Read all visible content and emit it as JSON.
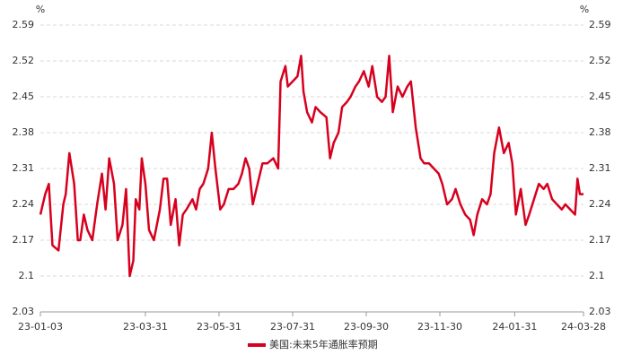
{
  "chart_data": {
    "type": "line",
    "y_unit": "%",
    "y2_unit": "%",
    "x": [
      "23-01-03",
      "23-01-07",
      "23-01-10",
      "23-01-13",
      "23-01-18",
      "23-01-22",
      "23-01-24",
      "23-01-27",
      "23-01-31",
      "23-02-03",
      "23-02-05",
      "23-02-08",
      "23-02-11",
      "23-02-15",
      "23-02-19",
      "23-02-23",
      "23-02-26",
      "23-03-01",
      "23-03-05",
      "23-03-08",
      "23-03-12",
      "23-03-15",
      "23-03-18",
      "23-03-21",
      "23-03-23",
      "23-03-26",
      "23-03-28",
      "23-03-31",
      "23-04-03",
      "23-04-07",
      "23-04-12",
      "23-04-15",
      "23-04-18",
      "23-04-21",
      "23-04-25",
      "23-04-28",
      "23-05-01",
      "23-05-04",
      "23-05-09",
      "23-05-12",
      "23-05-15",
      "23-05-18",
      "23-05-22",
      "23-05-25",
      "23-05-28",
      "23-06-01",
      "23-06-04",
      "23-06-08",
      "23-06-12",
      "23-06-16",
      "23-06-19",
      "23-06-22",
      "23-06-25",
      "23-06-28",
      "23-07-02",
      "23-07-06",
      "23-07-10",
      "23-07-15",
      "23-07-19",
      "23-07-21",
      "23-07-25",
      "23-07-27",
      "23-07-31",
      "23-08-04",
      "23-08-07",
      "23-08-09",
      "23-08-12",
      "23-08-16",
      "23-08-19",
      "23-08-23",
      "23-08-28",
      "23-08-31",
      "23-09-03",
      "23-09-07",
      "23-09-10",
      "23-09-14",
      "23-09-17",
      "23-09-21",
      "23-09-24",
      "23-09-28",
      "23-10-02",
      "23-10-05",
      "23-10-09",
      "23-10-13",
      "23-10-16",
      "23-10-19",
      "23-10-22",
      "23-10-26",
      "23-10-30",
      "23-11-03",
      "23-11-06",
      "23-11-10",
      "23-11-14",
      "23-11-17",
      "23-11-21",
      "23-11-25",
      "23-11-29",
      "23-12-02",
      "23-12-06",
      "23-12-10",
      "23-12-13",
      "23-12-17",
      "23-12-21",
      "23-12-25",
      "23-12-28",
      "23-12-31",
      "24-01-04",
      "24-01-08",
      "24-01-11",
      "24-01-14",
      "24-01-18",
      "24-01-22",
      "24-01-26",
      "24-01-29",
      "24-02-01",
      "24-02-05",
      "24-02-09",
      "24-02-12",
      "24-02-16",
      "24-02-20",
      "24-02-24",
      "24-02-27",
      "24-03-02",
      "24-03-06",
      "24-03-10",
      "24-03-13",
      "24-03-17",
      "24-03-21",
      "24-03-23",
      "24-03-25",
      "24-03-28"
    ],
    "series": [
      {
        "name": "美国:未来5年通胀率预期",
        "color": "#d7001e",
        "values": [
          2.22,
          2.26,
          2.28,
          2.16,
          2.15,
          2.24,
          2.26,
          2.34,
          2.28,
          2.17,
          2.17,
          2.22,
          2.19,
          2.17,
          2.24,
          2.3,
          2.23,
          2.33,
          2.28,
          2.17,
          2.2,
          2.27,
          2.1,
          2.13,
          2.25,
          2.23,
          2.33,
          2.28,
          2.19,
          2.17,
          2.23,
          2.29,
          2.29,
          2.2,
          2.25,
          2.16,
          2.22,
          2.23,
          2.25,
          2.23,
          2.27,
          2.28,
          2.31,
          2.38,
          2.31,
          2.23,
          2.24,
          2.27,
          2.27,
          2.28,
          2.3,
          2.33,
          2.31,
          2.24,
          2.28,
          2.32,
          2.32,
          2.33,
          2.31,
          2.48,
          2.51,
          2.47,
          2.48,
          2.49,
          2.53,
          2.46,
          2.42,
          2.4,
          2.43,
          2.42,
          2.41,
          2.33,
          2.36,
          2.38,
          2.43,
          2.44,
          2.45,
          2.47,
          2.48,
          2.5,
          2.47,
          2.51,
          2.45,
          2.44,
          2.45,
          2.53,
          2.42,
          2.47,
          2.45,
          2.47,
          2.48,
          2.39,
          2.33,
          2.32,
          2.32,
          2.31,
          2.3,
          2.28,
          2.24,
          2.25,
          2.27,
          2.24,
          2.22,
          2.21,
          2.18,
          2.22,
          2.25,
          2.24,
          2.26,
          2.34,
          2.39,
          2.34,
          2.36,
          2.32,
          2.22,
          2.27,
          2.2,
          2.22,
          2.25,
          2.28,
          2.27,
          2.28,
          2.25,
          2.24,
          2.23,
          2.24,
          2.23,
          2.22,
          2.29,
          2.26,
          2.26
        ]
      }
    ],
    "ylim": [
      2.03,
      2.59
    ],
    "yticks": [
      2.03,
      2.1,
      2.17,
      2.24,
      2.31,
      2.38,
      2.45,
      2.52,
      2.59
    ],
    "y2lim": [
      2.03,
      2.59
    ],
    "y2ticks": [
      2.03,
      2.1,
      2.17,
      2.24,
      2.31,
      2.38,
      2.45,
      2.52,
      2.59
    ],
    "xticks": [
      "23-01-03",
      "23-03-31",
      "23-05-31",
      "23-07-31",
      "23-09-30",
      "23-11-30",
      "24-01-31",
      "24-03-28"
    ],
    "grid": true,
    "legend": "bottom"
  }
}
